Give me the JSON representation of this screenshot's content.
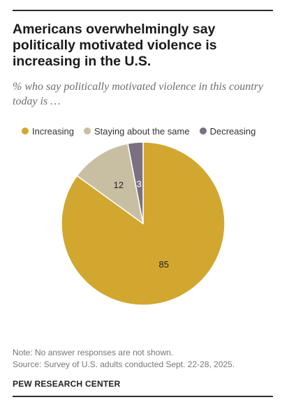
{
  "header": {
    "title": "Americans overwhelmingly say politically motivated violence is increasing in the U.S.",
    "subtitle": "% who say politically motivated violence in this country today is …"
  },
  "legend": {
    "items": [
      {
        "label": "Increasing",
        "color": "#d2a72f"
      },
      {
        "label": "Staying about the same",
        "color": "#c8bfa2"
      },
      {
        "label": "Decreasing",
        "color": "#7b6f82"
      }
    ]
  },
  "chart_data": {
    "type": "pie",
    "categories": [
      "Increasing",
      "Staying about the same",
      "Decreasing"
    ],
    "values": [
      85,
      12,
      3
    ],
    "data_labels": [
      "85",
      "12",
      "3"
    ],
    "colors": [
      "#d2a72f",
      "#c8bfa2",
      "#7b6f82"
    ],
    "start": "top",
    "direction": "clockwise",
    "legend_position": "top"
  },
  "footer": {
    "note": "Note: No answer responses are not shown.",
    "source": "Source: Survey of U.S. adults conducted Sept. 22-28, 2025.",
    "brand": "PEW RESEARCH CENTER"
  }
}
